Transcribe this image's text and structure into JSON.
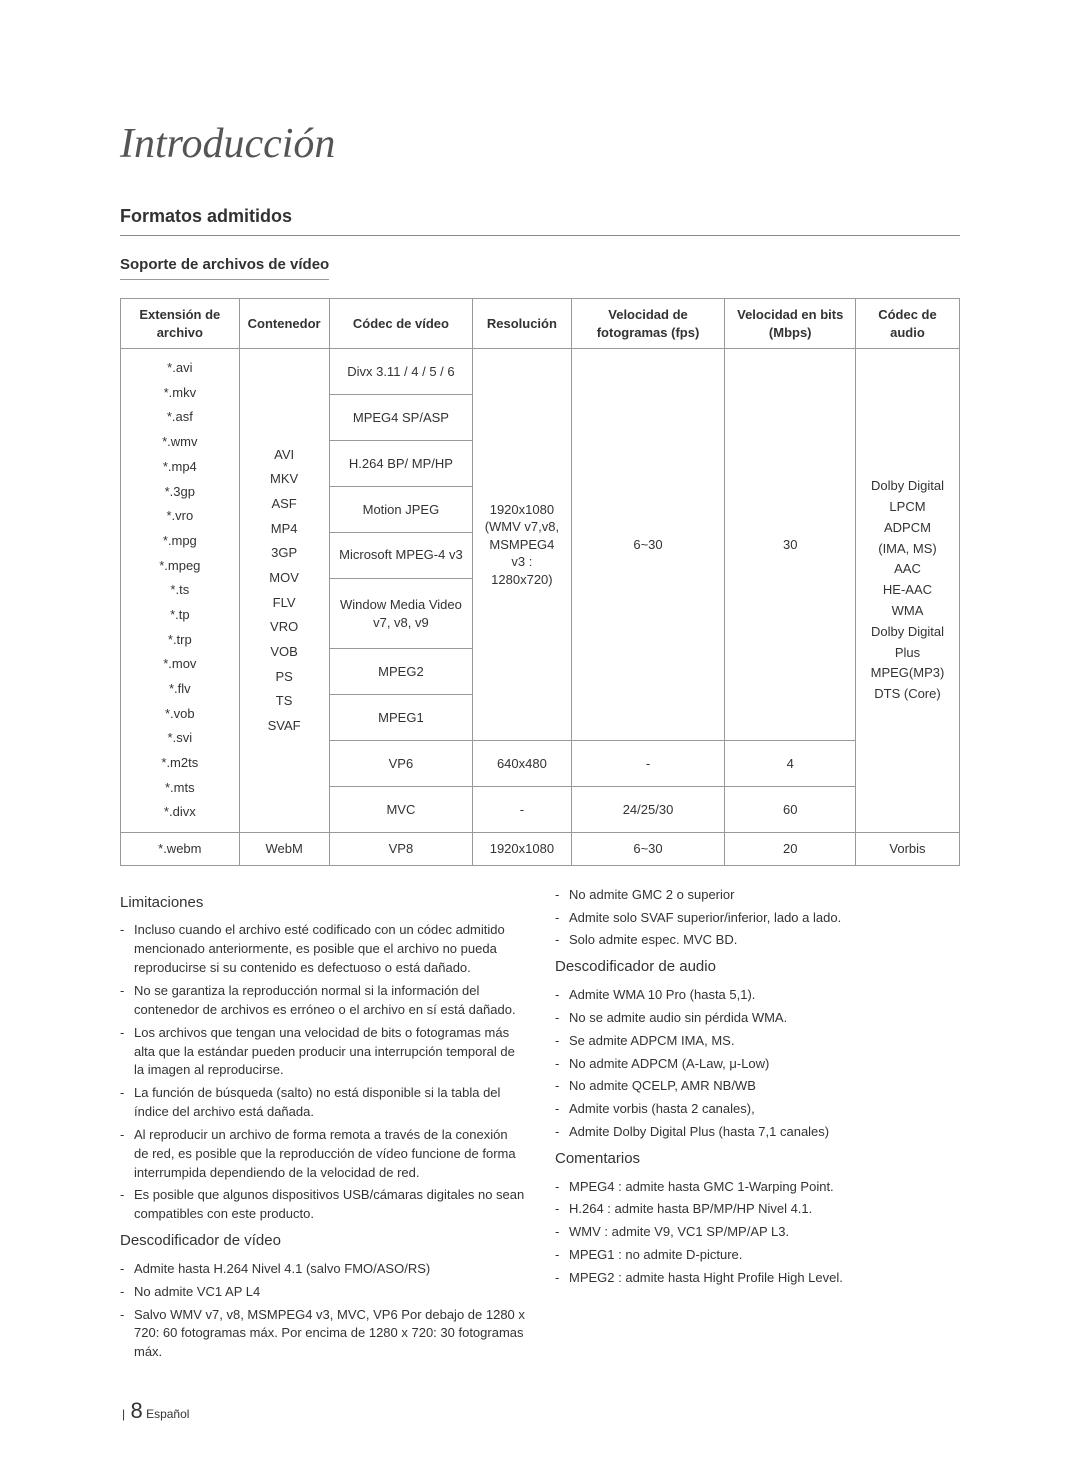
{
  "page": {
    "title": "Introducción",
    "section": "Formatos admitidos",
    "subsection": "Soporte de archivos de vídeo",
    "footer_sep": "|",
    "footer_pagenum": "8",
    "footer_lang": "Español"
  },
  "table": {
    "headers": {
      "ext": "Extensión de archivo",
      "container": "Contenedor",
      "vcodec": "Códec de vídeo",
      "res": "Resolución",
      "fps": "Velocidad de fotogramas (fps)",
      "mbps": "Velocidad en bits (Mbps)",
      "acodec": "Códec de audio"
    },
    "extensions": "*.avi\n*.mkv\n*.asf\n*.wmv\n*.mp4\n*.3gp\n*.vro\n*.mpg\n*.mpeg\n*.ts\n*.tp\n*.trp\n*.mov\n*.flv\n*.vob\n*.svi\n*.m2ts\n*.mts\n*.divx",
    "containers": "AVI\nMKV\nASF\nMP4\n3GP\nMOV\nFLV\nVRO\nVOB\nPS\nTS\nSVAF",
    "resolution_main": "1920x1080\n(WMV v7,v8,\nMSMPEG4 v3 :\n1280x720)",
    "fps_main": "6~30",
    "mbps_main": "30",
    "acodec_main": "Dolby Digital\nLPCM\nADPCM\n(IMA, MS)\nAAC\nHE-AAC\nWMA\nDolby Digital\nPlus\nMPEG(MP3)\nDTS (Core)",
    "vcodecs": {
      "r1": "Divx 3.11 / 4 / 5 / 6",
      "r2": "MPEG4 SP/ASP",
      "r3": "H.264 BP/ MP/HP",
      "r4": "Motion JPEG",
      "r5": "Microsoft MPEG-4 v3",
      "r6": "Window Media Video v7, v8, v9",
      "r7": "MPEG2",
      "r8": "MPEG1",
      "r9": "VP6",
      "r10": "MVC"
    },
    "vp6_res": "640x480",
    "vp6_fps": "-",
    "vp6_mbps": "4",
    "mvc_res": "-",
    "mvc_fps": "24/25/30",
    "mvc_mbps": "60",
    "webm_ext": "*.webm",
    "webm_container": "WebM",
    "webm_vcodec": "VP8",
    "webm_res": "1920x1080",
    "webm_fps": "6~30",
    "webm_mbps": "20",
    "webm_acodec": "Vorbis"
  },
  "left_col": {
    "h1": "Limitaciones",
    "l1": [
      "Incluso cuando el archivo esté codificado con un códec admitido mencionado anteriormente, es posible que el archivo no pueda reproducirse si su contenido es defectuoso o está dañado.",
      "No se garantiza la reproducción normal si la información del contenedor de archivos es erróneo o el archivo en sí está dañado.",
      "Los archivos que tengan una velocidad de bits o fotogramas más alta que la estándar pueden producir una interrupción temporal de la imagen al reproducirse.",
      "La función de búsqueda (salto) no está disponible si la tabla del índice del archivo está dañada.",
      "Al reproducir un archivo de forma remota a través de la conexión de red, es posible que la reproducción de vídeo funcione de forma interrumpida dependiendo de la velocidad de red.",
      "Es posible que algunos dispositivos USB/cámaras digitales no sean compatibles con este producto."
    ],
    "h2": "Descodificador de vídeo",
    "l2": [
      "Admite hasta H.264 Nivel 4.1 (salvo FMO/ASO/RS)",
      "No admite VC1 AP L4",
      "Salvo WMV v7, v8, MSMPEG4 v3, MVC, VP6 Por debajo de 1280 x 720: 60 fotogramas máx. Por encima de 1280 x 720: 30 fotogramas máx."
    ]
  },
  "right_col": {
    "l0": [
      "No admite GMC 2 o superior",
      "Admite solo SVAF superior/inferior, lado a lado.",
      "Solo admite espec. MVC BD."
    ],
    "h1": "Descodificador de audio",
    "l1": [
      "Admite WMA 10 Pro (hasta 5,1).",
      "No se admite audio sin pérdida WMA.",
      "Se admite ADPCM IMA, MS.",
      "No admite ADPCM (A-Law, μ-Low)",
      "No admite QCELP, AMR NB/WB",
      "Admite vorbis (hasta 2 canales),",
      "Admite Dolby Digital Plus (hasta 7,1 canales)"
    ],
    "h2": "Comentarios",
    "l2": [
      "MPEG4 : admite hasta GMC 1-Warping Point.",
      "H.264 : admite hasta BP/MP/HP Nivel 4.1.",
      "WMV : admite V9, VC1 SP/MP/AP L3.",
      "MPEG1 : no admite D-picture.",
      "MPEG2 : admite hasta Hight Profile High Level."
    ]
  }
}
